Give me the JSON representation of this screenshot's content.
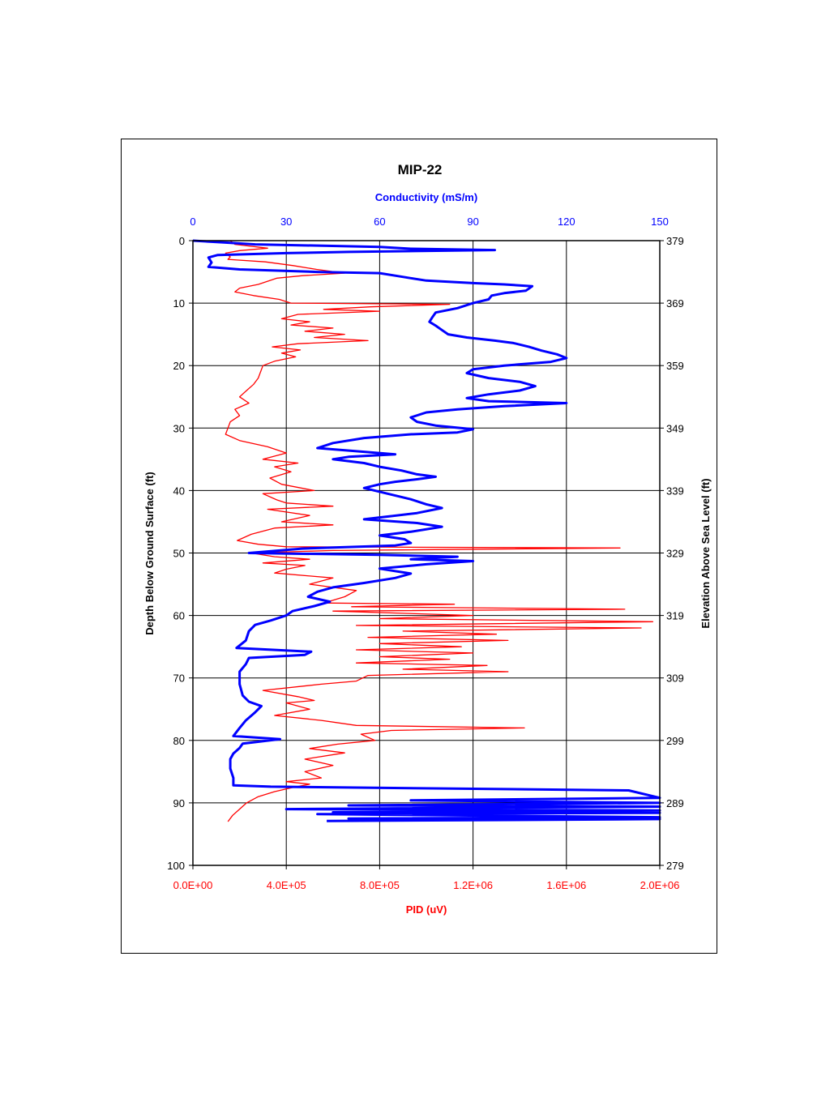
{
  "chart_data": {
    "type": "line",
    "title": "MIP-22",
    "orientation": "vertical-depth-profile",
    "grid": true,
    "colors": {
      "conductivity": "#0000ff",
      "pid": "#ff0000",
      "axes": "#000000"
    },
    "axes": {
      "x_top": {
        "label": "Conductivity (mS/m)",
        "range": [
          0,
          150
        ],
        "ticks": [
          "0",
          "30",
          "60",
          "90",
          "120",
          "150"
        ],
        "color": "#0000ff"
      },
      "x_bottom": {
        "label": "PID (uV)",
        "range": [
          0,
          2000000
        ],
        "ticks": [
          "0.0E+00",
          "4.0E+05",
          "8.0E+05",
          "1.2E+06",
          "1.6E+06",
          "2.0E+06"
        ],
        "color": "#ff0000"
      },
      "y_left": {
        "label": "Depth Below Ground Surface (ft)",
        "range": [
          0,
          100
        ],
        "ticks": [
          "0",
          "10",
          "20",
          "30",
          "40",
          "50",
          "60",
          "70",
          "80",
          "90",
          "100"
        ]
      },
      "y_right": {
        "label": "Elevation Above Sea Level (ft)",
        "range": [
          379,
          279
        ],
        "ticks": [
          "379",
          "369",
          "359",
          "349",
          "339",
          "329",
          "319",
          "309",
          "299",
          "289",
          "279"
        ]
      }
    },
    "series": [
      {
        "name": "Conductivity (mS/m)",
        "axis": "x_top",
        "points": [
          [
            0,
            0
          ],
          [
            10,
            0.3
          ],
          [
            20,
            0.6
          ],
          [
            60,
            1
          ],
          [
            70,
            1.3
          ],
          [
            97,
            1.5
          ],
          [
            50,
            1.8
          ],
          [
            30,
            2
          ],
          [
            8,
            2.3
          ],
          [
            5,
            2.7
          ],
          [
            6,
            3.5
          ],
          [
            5,
            4.2
          ],
          [
            15,
            4.6
          ],
          [
            40,
            5
          ],
          [
            60,
            5.2
          ],
          [
            65,
            5.6
          ],
          [
            70,
            6
          ],
          [
            75,
            6.4
          ],
          [
            90,
            6.8
          ],
          [
            100,
            7
          ],
          [
            109,
            7.3
          ],
          [
            107,
            8
          ],
          [
            100,
            8.4
          ],
          [
            96,
            8.8
          ],
          [
            95,
            9.4
          ],
          [
            90,
            10
          ],
          [
            85,
            10.8
          ],
          [
            78,
            11.5
          ],
          [
            77,
            12.2
          ],
          [
            76,
            13
          ],
          [
            78,
            13.6
          ],
          [
            80,
            14.3
          ],
          [
            82,
            15
          ],
          [
            88,
            15.5
          ],
          [
            97,
            16
          ],
          [
            103,
            16.4
          ],
          [
            108,
            17
          ],
          [
            112,
            17.6
          ],
          [
            117,
            18.2
          ],
          [
            120,
            18.8
          ],
          [
            115,
            19.4
          ],
          [
            100,
            20
          ],
          [
            90,
            20.6
          ],
          [
            88,
            21.2
          ],
          [
            95,
            22
          ],
          [
            105,
            22.6
          ],
          [
            110,
            23.3
          ],
          [
            105,
            24
          ],
          [
            95,
            24.6
          ],
          [
            88,
            25.2
          ],
          [
            95,
            25.7
          ],
          [
            120,
            26
          ],
          [
            100,
            26.5
          ],
          [
            85,
            27
          ],
          [
            75,
            27.5
          ],
          [
            70,
            28.3
          ],
          [
            72,
            29
          ],
          [
            78,
            29.6
          ],
          [
            90,
            30.2
          ],
          [
            85,
            30.7
          ],
          [
            70,
            31
          ],
          [
            55,
            31.6
          ],
          [
            45,
            32.4
          ],
          [
            40,
            33.2
          ],
          [
            55,
            33.8
          ],
          [
            65,
            34.2
          ],
          [
            50,
            34.6
          ],
          [
            45,
            35
          ],
          [
            55,
            35.6
          ],
          [
            60,
            36.2
          ],
          [
            67,
            36.8
          ],
          [
            72,
            37.4
          ],
          [
            78,
            37.8
          ],
          [
            72,
            38.2
          ],
          [
            65,
            38.6
          ],
          [
            60,
            39
          ],
          [
            55,
            39.6
          ],
          [
            60,
            40.2
          ],
          [
            65,
            40.8
          ],
          [
            70,
            41.4
          ],
          [
            75,
            42.2
          ],
          [
            80,
            42.8
          ],
          [
            72,
            43.6
          ],
          [
            62,
            44.2
          ],
          [
            55,
            44.6
          ],
          [
            72,
            45.2
          ],
          [
            80,
            45.8
          ],
          [
            70,
            46.6
          ],
          [
            60,
            47.2
          ],
          [
            68,
            47.8
          ],
          [
            70,
            48.4
          ],
          [
            65,
            48.8
          ],
          [
            35,
            49.3
          ],
          [
            18,
            50
          ],
          [
            60,
            50.3
          ],
          [
            85,
            50.6
          ],
          [
            70,
            51
          ],
          [
            90,
            51.3
          ],
          [
            75,
            51.8
          ],
          [
            60,
            52.5
          ],
          [
            70,
            53.3
          ],
          [
            65,
            54
          ],
          [
            55,
            54.8
          ],
          [
            45,
            55.5
          ],
          [
            40,
            56.2
          ],
          [
            37,
            57
          ],
          [
            44,
            57.8
          ],
          [
            39,
            58.5
          ],
          [
            32,
            59.3
          ],
          [
            30,
            60
          ],
          [
            25,
            60.8
          ],
          [
            20,
            61.5
          ],
          [
            18,
            62.5
          ],
          [
            17,
            64
          ],
          [
            14,
            65.2
          ],
          [
            38,
            65.8
          ],
          [
            36,
            66.3
          ],
          [
            18,
            66.8
          ],
          [
            17,
            67.8
          ],
          [
            15,
            69
          ],
          [
            15,
            71
          ],
          [
            16,
            72.8
          ],
          [
            18,
            73.8
          ],
          [
            22,
            74.5
          ],
          [
            20,
            75.5
          ],
          [
            17,
            76.8
          ],
          [
            15,
            78
          ],
          [
            13,
            79.3
          ],
          [
            28,
            79.8
          ],
          [
            16,
            80.5
          ],
          [
            15,
            81.2
          ],
          [
            13,
            82.1
          ],
          [
            12,
            83
          ],
          [
            12,
            84.5
          ],
          [
            13,
            86
          ],
          [
            13,
            87.2
          ],
          [
            25,
            87.4
          ],
          [
            140,
            88
          ],
          [
            150,
            89.2
          ],
          [
            70,
            89.6
          ],
          [
            150,
            90
          ],
          [
            50,
            90.4
          ],
          [
            150,
            90.6
          ],
          [
            30,
            91
          ],
          [
            150,
            91.2
          ],
          [
            45,
            91.5
          ],
          [
            150,
            91.6
          ],
          [
            40,
            91.8
          ],
          [
            150,
            92.3
          ],
          [
            50,
            92.5
          ],
          [
            150,
            92.6
          ],
          [
            43,
            92.9
          ]
        ]
      },
      {
        "name": "PID (uV)",
        "axis": "x_bottom",
        "points": [
          [
            160000,
            0
          ],
          [
            180000,
            0.6
          ],
          [
            320000,
            1.2
          ],
          [
            200000,
            1.6
          ],
          [
            140000,
            2
          ],
          [
            160000,
            2.6
          ],
          [
            150000,
            3
          ],
          [
            310000,
            3.4
          ],
          [
            430000,
            4
          ],
          [
            530000,
            4.6
          ],
          [
            650000,
            5.2
          ],
          [
            470000,
            5.6
          ],
          [
            360000,
            6
          ],
          [
            320000,
            6.5
          ],
          [
            280000,
            7
          ],
          [
            200000,
            7.6
          ],
          [
            180000,
            8.2
          ],
          [
            260000,
            8.8
          ],
          [
            370000,
            9.4
          ],
          [
            420000,
            10
          ],
          [
            1100000,
            10.2
          ],
          [
            760000,
            10.6
          ],
          [
            560000,
            11
          ],
          [
            800000,
            11.3
          ],
          [
            450000,
            11.8
          ],
          [
            380000,
            12.5
          ],
          [
            500000,
            13
          ],
          [
            420000,
            13.5
          ],
          [
            600000,
            14
          ],
          [
            480000,
            14.5
          ],
          [
            650000,
            15
          ],
          [
            520000,
            15.5
          ],
          [
            750000,
            16
          ],
          [
            450000,
            16.5
          ],
          [
            340000,
            17
          ],
          [
            460000,
            17.5
          ],
          [
            380000,
            18
          ],
          [
            440000,
            18.6
          ],
          [
            350000,
            19.3
          ],
          [
            300000,
            20
          ],
          [
            290000,
            21
          ],
          [
            280000,
            22
          ],
          [
            260000,
            23
          ],
          [
            230000,
            24
          ],
          [
            200000,
            25
          ],
          [
            240000,
            26
          ],
          [
            180000,
            27
          ],
          [
            200000,
            28
          ],
          [
            160000,
            29
          ],
          [
            150000,
            30
          ],
          [
            140000,
            31
          ],
          [
            200000,
            32
          ],
          [
            320000,
            33
          ],
          [
            400000,
            34
          ],
          [
            300000,
            35
          ],
          [
            450000,
            35.6
          ],
          [
            350000,
            36.2
          ],
          [
            420000,
            37
          ],
          [
            330000,
            38
          ],
          [
            380000,
            39
          ],
          [
            520000,
            40
          ],
          [
            300000,
            40.5
          ],
          [
            360000,
            41.5
          ],
          [
            400000,
            42
          ],
          [
            600000,
            42.5
          ],
          [
            320000,
            43
          ],
          [
            500000,
            44
          ],
          [
            380000,
            45
          ],
          [
            600000,
            45.5
          ],
          [
            350000,
            46
          ],
          [
            250000,
            47
          ],
          [
            190000,
            48
          ],
          [
            280000,
            48.6
          ],
          [
            400000,
            49
          ],
          [
            1830000,
            49.2
          ],
          [
            600000,
            49.6
          ],
          [
            250000,
            50
          ],
          [
            350000,
            50.6
          ],
          [
            500000,
            51
          ],
          [
            300000,
            51.6
          ],
          [
            480000,
            52
          ],
          [
            400000,
            52.6
          ],
          [
            350000,
            53.2
          ],
          [
            600000,
            54
          ],
          [
            500000,
            55
          ],
          [
            700000,
            56
          ],
          [
            650000,
            57
          ],
          [
            560000,
            58
          ],
          [
            1120000,
            58.2
          ],
          [
            680000,
            58.6
          ],
          [
            1850000,
            59
          ],
          [
            600000,
            59.3
          ],
          [
            1200000,
            60
          ],
          [
            800000,
            60.5
          ],
          [
            1970000,
            61
          ],
          [
            700000,
            61.6
          ],
          [
            1920000,
            62
          ],
          [
            900000,
            62.5
          ],
          [
            1300000,
            63
          ],
          [
            750000,
            63.5
          ],
          [
            1350000,
            64
          ],
          [
            800000,
            64.5
          ],
          [
            1150000,
            65
          ],
          [
            700000,
            65.5
          ],
          [
            1200000,
            66
          ],
          [
            800000,
            66.6
          ],
          [
            1100000,
            67
          ],
          [
            700000,
            67.6
          ],
          [
            1260000,
            68
          ],
          [
            900000,
            68.6
          ],
          [
            1350000,
            69
          ],
          [
            750000,
            69.6
          ],
          [
            700000,
            70.5
          ],
          [
            550000,
            71
          ],
          [
            300000,
            72
          ],
          [
            450000,
            73
          ],
          [
            520000,
            73.6
          ],
          [
            400000,
            74
          ],
          [
            500000,
            75
          ],
          [
            350000,
            76
          ],
          [
            550000,
            76.8
          ],
          [
            700000,
            77.6
          ],
          [
            1420000,
            78
          ],
          [
            850000,
            78.4
          ],
          [
            720000,
            79
          ],
          [
            780000,
            80
          ],
          [
            620000,
            80.6
          ],
          [
            500000,
            81.3
          ],
          [
            650000,
            82
          ],
          [
            480000,
            83
          ],
          [
            600000,
            84
          ],
          [
            480000,
            85
          ],
          [
            550000,
            86
          ],
          [
            400000,
            86.6
          ],
          [
            500000,
            87
          ],
          [
            420000,
            87.6
          ],
          [
            350000,
            88.2
          ],
          [
            280000,
            89
          ],
          [
            230000,
            90
          ],
          [
            200000,
            91
          ],
          [
            170000,
            92
          ],
          [
            150000,
            93
          ]
        ]
      }
    ]
  }
}
